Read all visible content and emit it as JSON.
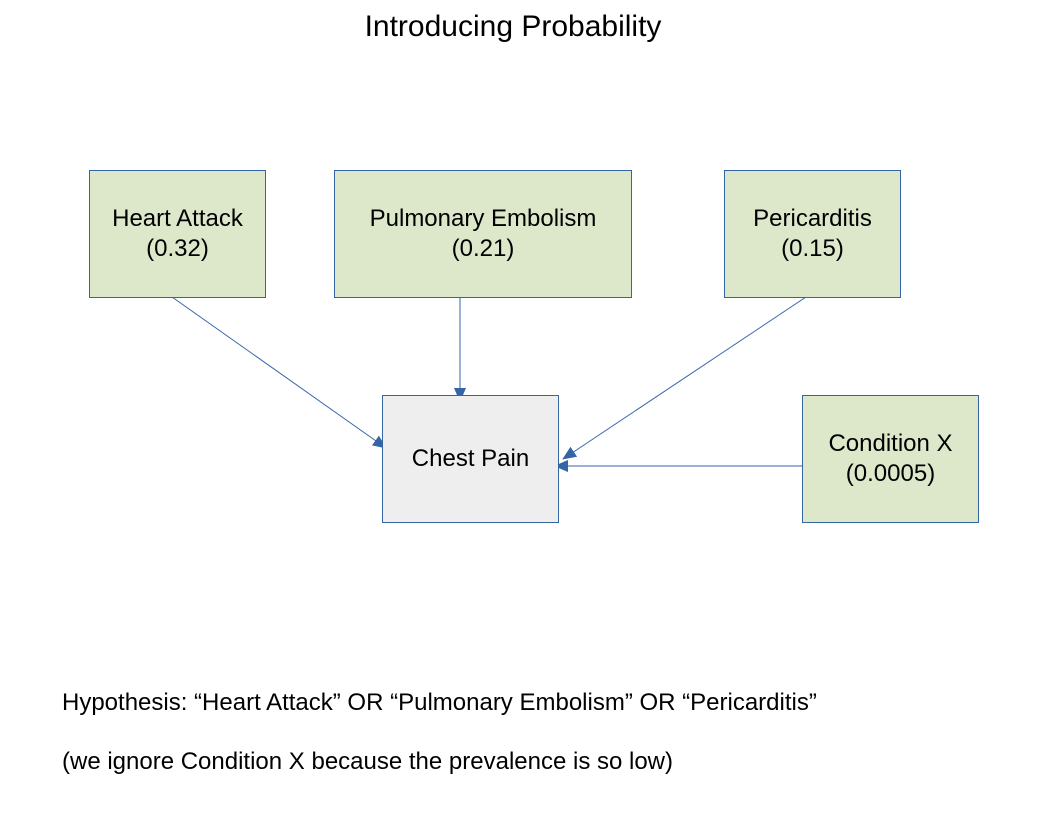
{
  "title": "Introducing Probability",
  "colors": {
    "cause_fill": "#dde8cb",
    "effect_fill": "#eeeeee",
    "border": "#3465a4",
    "arrow": "#3465a4"
  },
  "nodes": {
    "heart_attack": {
      "label": "Heart Attack",
      "value": "(0.32)"
    },
    "pulmonary_embolism": {
      "label": "Pulmonary Embolism",
      "value": "(0.21)"
    },
    "pericarditis": {
      "label": "Pericarditis",
      "value": "(0.15)"
    },
    "condition_x": {
      "label": "Condition X",
      "value": "(0.0005)"
    },
    "chest_pain": {
      "label": "Chest Pain"
    }
  },
  "edges": [
    {
      "from": "Heart Attack",
      "to": "Chest Pain"
    },
    {
      "from": "Pulmonary Embolism",
      "to": "Chest Pain"
    },
    {
      "from": "Pericarditis",
      "to": "Chest Pain"
    },
    {
      "from": "Condition X",
      "to": "Chest Pain"
    }
  ],
  "notes": {
    "hypothesis": "Hypothesis: “Heart Attack” OR “Pulmonary Embolism” OR “Pericarditis”",
    "caveat": "(we ignore Condition X because the prevalence is so low)"
  }
}
